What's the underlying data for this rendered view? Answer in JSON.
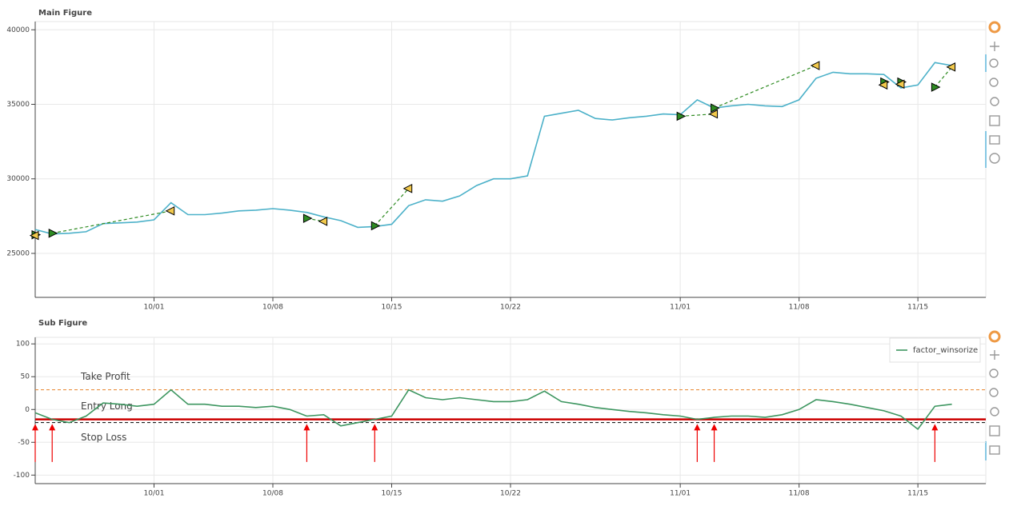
{
  "chart_data": [
    {
      "type": "line",
      "title": "Main Figure",
      "color": "#4cb1c9",
      "x": [
        "09/24",
        "09/25",
        "09/26",
        "09/27",
        "09/28",
        "09/29",
        "09/30",
        "10/01",
        "10/02",
        "10/03",
        "10/04",
        "10/05",
        "10/06",
        "10/07",
        "10/08",
        "10/09",
        "10/10",
        "10/11",
        "10/12",
        "10/13",
        "10/14",
        "10/15",
        "10/16",
        "10/17",
        "10/18",
        "10/19",
        "10/20",
        "10/21",
        "10/22",
        "10/23",
        "10/24",
        "10/25",
        "10/26",
        "10/27",
        "10/28",
        "10/29",
        "10/30",
        "10/31",
        "11/01",
        "11/02",
        "11/03",
        "11/04",
        "11/05",
        "11/06",
        "11/07",
        "11/08",
        "11/09",
        "11/10",
        "11/11",
        "11/12",
        "11/13",
        "11/14",
        "11/15",
        "11/16",
        "11/17"
      ],
      "values": [
        26600,
        26300,
        26350,
        26450,
        27000,
        27050,
        27100,
        27250,
        28400,
        27600,
        27600,
        27700,
        27850,
        27900,
        28000,
        27900,
        27750,
        27450,
        27200,
        26750,
        26800,
        26950,
        28200,
        28600,
        28500,
        28850,
        29550,
        30000,
        30000,
        30200,
        34200,
        34400,
        34600,
        34050,
        33950,
        34100,
        34200,
        34350,
        34300,
        35300,
        34750,
        34900,
        35000,
        34900,
        34850,
        35300,
        36750,
        37150,
        37050,
        37050,
        37000,
        36100,
        36300,
        37800,
        37600
      ],
      "xlim": [
        "09/24",
        "11/19"
      ],
      "xticks": [
        "10/01",
        "10/08",
        "10/15",
        "10/22",
        "11/01",
        "11/08",
        "11/15"
      ],
      "ylim": [
        22050,
        40550
      ],
      "yticks": [
        25000,
        30000,
        35000,
        40000
      ],
      "grid": true,
      "trade_color": "#2e8b22",
      "entry_color": "#2e8b22",
      "exit_color": "#f2c94c",
      "trades": [
        {
          "entry_x": "09/24",
          "entry_price": 26250,
          "exit_x": "09/24",
          "exit_price": 26200
        },
        {
          "entry_x": "09/25",
          "entry_price": 26350,
          "exit_x": "10/02",
          "exit_price": 27850
        },
        {
          "entry_x": "10/10",
          "entry_price": 27350,
          "exit_x": "10/11",
          "exit_price": 27150
        },
        {
          "entry_x": "10/14",
          "entry_price": 26850,
          "exit_x": "10/16",
          "exit_price": 29350
        },
        {
          "entry_x": "11/01",
          "entry_price": 34200,
          "exit_x": "11/03",
          "exit_price": 34350
        },
        {
          "entry_x": "11/03",
          "entry_price": 34750,
          "exit_x": "11/09",
          "exit_price": 37600
        },
        {
          "entry_x": "11/13",
          "entry_price": 36500,
          "exit_x": "11/13",
          "exit_price": 36300
        },
        {
          "entry_x": "11/14",
          "entry_price": 36500,
          "exit_x": "11/14",
          "exit_price": 36350
        },
        {
          "entry_x": "11/16",
          "entry_price": 36150,
          "exit_x": "11/17",
          "exit_price": 37500
        }
      ]
    },
    {
      "type": "line",
      "title": "Sub Figure",
      "x": [
        "09/24",
        "09/25",
        "09/26",
        "09/27",
        "09/28",
        "09/29",
        "09/30",
        "10/01",
        "10/02",
        "10/03",
        "10/04",
        "10/05",
        "10/06",
        "10/07",
        "10/08",
        "10/09",
        "10/10",
        "10/11",
        "10/12",
        "10/13",
        "10/14",
        "10/15",
        "10/16",
        "10/17",
        "10/18",
        "10/19",
        "10/20",
        "10/21",
        "10/22",
        "10/23",
        "10/24",
        "10/25",
        "10/26",
        "10/27",
        "10/28",
        "10/29",
        "10/30",
        "10/31",
        "11/01",
        "11/02",
        "11/03",
        "11/04",
        "11/05",
        "11/06",
        "11/07",
        "11/08",
        "11/09",
        "11/10",
        "11/11",
        "11/12",
        "11/13",
        "11/14",
        "11/15",
        "11/16",
        "11/17"
      ],
      "series": [
        {
          "name": "factor_winsorize",
          "color": "#3d9660",
          "values": [
            -5,
            -15,
            -20,
            -10,
            10,
            8,
            5,
            8,
            30,
            8,
            8,
            5,
            5,
            3,
            5,
            0,
            -10,
            -8,
            -25,
            -20,
            -15,
            -10,
            30,
            18,
            15,
            18,
            15,
            12,
            12,
            15,
            28,
            12,
            8,
            3,
            0,
            -3,
            -5,
            -8,
            -10,
            -15,
            -12,
            -10,
            -10,
            -12,
            -8,
            0,
            15,
            12,
            8,
            3,
            -2,
            -10,
            -30,
            5,
            8
          ]
        }
      ],
      "xlim": [
        "09/24",
        "11/19"
      ],
      "xticks": [
        "10/01",
        "10/08",
        "10/15",
        "10/22",
        "11/01",
        "11/08",
        "11/15"
      ],
      "ylim": [
        -113,
        110
      ],
      "yticks": [
        -100,
        -50,
        0,
        50,
        100
      ],
      "grid": true,
      "legend": "top-right",
      "levels": [
        {
          "label": "Take Profit",
          "value": 30,
          "color": "#e8832a",
          "dash": true
        },
        {
          "label": "Entry Long",
          "value": -15,
          "color": "#cc0000",
          "dash": false
        },
        {
          "label": "Stop Loss",
          "value": -20,
          "color": "#000000",
          "dash": true
        }
      ],
      "signal_color": "#ee0000",
      "signal_from": -80,
      "signal_to": -22,
      "signals": [
        "09/24",
        "09/25",
        "10/10",
        "10/14",
        "11/02",
        "11/03",
        "11/16"
      ]
    }
  ]
}
